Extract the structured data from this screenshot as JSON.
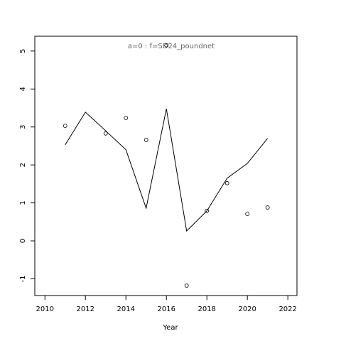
{
  "chart_data": {
    "type": "line",
    "title": "a=0  :  f=SD24_poundnet",
    "x_label": "Year",
    "x": [
      2011,
      2012,
      2013,
      2014,
      2015,
      2016,
      2017,
      2018,
      2019,
      2020,
      2021
    ],
    "series": [
      {
        "color": "#000000",
        "style": "line",
        "values": [
          2.53,
          3.39,
          2.9,
          2.4,
          0.86,
          3.48,
          0.26,
          0.79,
          1.65,
          2.04,
          2.7
        ]
      },
      {
        "color": "#000000",
        "style": "points",
        "values": [
          3.03,
          null,
          2.83,
          3.24,
          2.66,
          5.15,
          -1.18,
          0.79,
          1.52,
          0.71,
          0.88
        ]
      }
    ],
    "xlim": [
      2009.5,
      2022.45
    ],
    "ylim": [
      -1.44,
      5.39
    ],
    "xticks": [
      2010,
      2012,
      2014,
      2016,
      2018,
      2020,
      2022
    ],
    "yticks": [
      -1,
      0,
      1,
      2,
      3,
      4,
      5
    ]
  }
}
